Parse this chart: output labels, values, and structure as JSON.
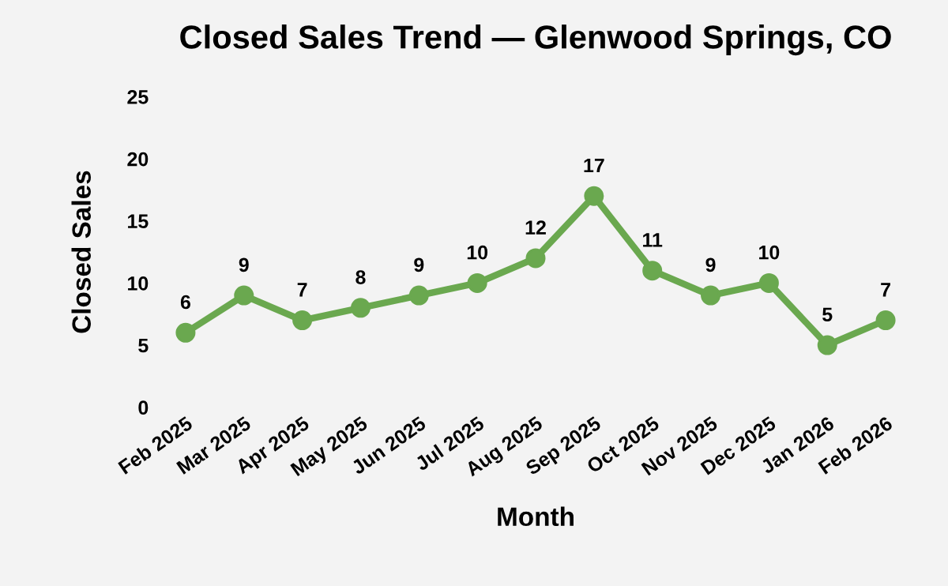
{
  "chart_data": {
    "type": "line",
    "title": "Closed Sales Trend — Glenwood Springs, CO",
    "xlabel": "Month",
    "ylabel": "Closed Sales",
    "categories": [
      "Feb 2025",
      "Mar 2025",
      "Apr 2025",
      "May 2025",
      "Jun 2025",
      "Jul 2025",
      "Aug 2025",
      "Sep 2025",
      "Oct 2025",
      "Nov 2025",
      "Dec 2025",
      "Jan 2026",
      "Feb 2026"
    ],
    "series": [
      {
        "color": "#6aa84f",
        "values": [
          6,
          9,
          7,
          8,
          9,
          10,
          12,
          17,
          11,
          9,
          10,
          5,
          7
        ]
      }
    ],
    "ylim": [
      0,
      25
    ],
    "yticks": [
      0,
      5,
      10,
      15,
      20,
      25
    ],
    "data_labels": true,
    "marker": "circle",
    "line_style": "solid",
    "grid": false,
    "legend": false
  }
}
